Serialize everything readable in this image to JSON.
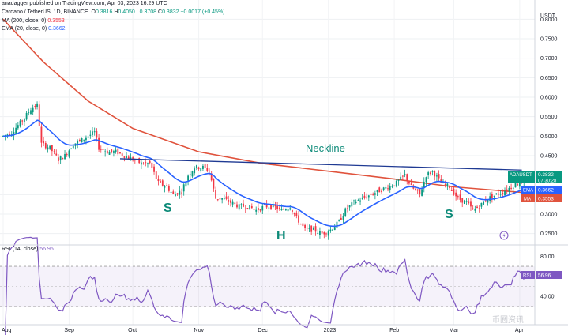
{
  "header": {
    "publisher_line": "anadagger published on TradingView.com, Apr 03, 2023 16:29 UTC",
    "symbol_line": "Cardano / TetherUS, 1D, BINANCE",
    "ohlc": {
      "o_label": "O",
      "o": "0.3816",
      "h_label": "H",
      "h": "0.4050",
      "l_label": "L",
      "l": "0.3708",
      "c_label": "C",
      "c": "0.3832",
      "change": "+0.0017 (+0.45%)"
    },
    "ma_label": "MA (200, close, 0)",
    "ma_value": "0.3553",
    "ema_label": "EMA (20, close, 0)",
    "ema_value": "0.3662",
    "rsi_label": "RSI (14, close)",
    "rsi_value": "56.96"
  },
  "annotations": {
    "neckline": "Neckline",
    "left_shoulder": "S",
    "head": "H",
    "right_shoulder": "S"
  },
  "price_tags": {
    "ticker": "ADAUSDT",
    "price": "0.3832",
    "countdown": "07:30:28",
    "ema_name": "EMA",
    "ema": "0.3662",
    "ma_name": "MA",
    "ma": "0.3553",
    "rsi_name": "RSI",
    "rsi": "56.96"
  },
  "watermark": "币圈资讯",
  "colors": {
    "up": "#089981",
    "down": "#f23645",
    "ma": "#e0533d",
    "ema": "#2962ff",
    "rsi": "#7e57c2",
    "neckline": "#1f3a93",
    "annotation": "#0c8a78"
  },
  "chart_data": [
    {
      "type": "candlestick",
      "title": "Cardano / TetherUS, 1D, BINANCE",
      "y_axis_title": "USDT",
      "ylim": [
        0.225,
        0.825
      ],
      "y_ticks": [
        0.25,
        0.3,
        0.35,
        0.4,
        0.45,
        0.5,
        0.55,
        0.6,
        0.65,
        0.7,
        0.75,
        0.8
      ],
      "y_tick_labels": [
        "0.2500",
        "0.3000",
        "0.3500",
        "0.4000",
        "0.4500",
        "0.5000",
        "0.5500",
        "0.6000",
        "0.6500",
        "0.7000",
        "0.7500",
        "0.8000"
      ],
      "x_ticks": [
        "Aug",
        "Sep",
        "Oct",
        "Nov",
        "Dec",
        "2023",
        "Feb",
        "Mar",
        "Apr"
      ],
      "close_series": [
        [
          "2022-08-01",
          0.5
        ],
        [
          "2022-08-05",
          0.51
        ],
        [
          "2022-08-10",
          0.54
        ],
        [
          "2022-08-14",
          0.57
        ],
        [
          "2022-08-17",
          0.58
        ],
        [
          "2022-08-19",
          0.48
        ],
        [
          "2022-08-23",
          0.47
        ],
        [
          "2022-08-27",
          0.44
        ],
        [
          "2022-08-30",
          0.45
        ],
        [
          "2022-09-03",
          0.48
        ],
        [
          "2022-09-07",
          0.49
        ],
        [
          "2022-09-10",
          0.5
        ],
        [
          "2022-09-13",
          0.51
        ],
        [
          "2022-09-15",
          0.47
        ],
        [
          "2022-09-19",
          0.46
        ],
        [
          "2022-09-23",
          0.46
        ],
        [
          "2022-09-27",
          0.45
        ],
        [
          "2022-10-01",
          0.44
        ],
        [
          "2022-10-05",
          0.43
        ],
        [
          "2022-10-09",
          0.43
        ],
        [
          "2022-10-13",
          0.38
        ],
        [
          "2022-10-17",
          0.37
        ],
        [
          "2022-10-20",
          0.35
        ],
        [
          "2022-10-24",
          0.36
        ],
        [
          "2022-10-27",
          0.4
        ],
        [
          "2022-10-30",
          0.42
        ],
        [
          "2022-11-03",
          0.42
        ],
        [
          "2022-11-06",
          0.41
        ],
        [
          "2022-11-09",
          0.34
        ],
        [
          "2022-11-12",
          0.34
        ],
        [
          "2022-11-16",
          0.33
        ],
        [
          "2022-11-20",
          0.32
        ],
        [
          "2022-11-24",
          0.32
        ],
        [
          "2022-11-28",
          0.31
        ],
        [
          "2022-12-02",
          0.32
        ],
        [
          "2022-12-06",
          0.32
        ],
        [
          "2022-12-10",
          0.31
        ],
        [
          "2022-12-14",
          0.32
        ],
        [
          "2022-12-17",
          0.29
        ],
        [
          "2022-12-21",
          0.26
        ],
        [
          "2022-12-25",
          0.26
        ],
        [
          "2022-12-29",
          0.25
        ],
        [
          "2023-01-02",
          0.26
        ],
        [
          "2023-01-06",
          0.28
        ],
        [
          "2023-01-09",
          0.31
        ],
        [
          "2023-01-13",
          0.33
        ],
        [
          "2023-01-17",
          0.34
        ],
        [
          "2023-01-21",
          0.35
        ],
        [
          "2023-01-25",
          0.36
        ],
        [
          "2023-01-29",
          0.37
        ],
        [
          "2023-02-02",
          0.38
        ],
        [
          "2023-02-06",
          0.4
        ],
        [
          "2023-02-09",
          0.37
        ],
        [
          "2023-02-13",
          0.35
        ],
        [
          "2023-02-16",
          0.4
        ],
        [
          "2023-02-19",
          0.41
        ],
        [
          "2023-02-23",
          0.38
        ],
        [
          "2023-02-27",
          0.37
        ],
        [
          "2023-03-03",
          0.34
        ],
        [
          "2023-03-07",
          0.33
        ],
        [
          "2023-03-10",
          0.31
        ],
        [
          "2023-03-13",
          0.32
        ],
        [
          "2023-03-17",
          0.34
        ],
        [
          "2023-03-21",
          0.35
        ],
        [
          "2023-03-25",
          0.36
        ],
        [
          "2023-03-28",
          0.37
        ],
        [
          "2023-03-31",
          0.38
        ],
        [
          "2023-04-03",
          0.3832
        ]
      ],
      "last_candle": {
        "open": 0.3816,
        "high": 0.405,
        "low": 0.3708,
        "close": 0.3832
      },
      "ma200": [
        [
          "2022-08-01",
          0.8
        ],
        [
          "2022-08-20",
          0.69
        ],
        [
          "2022-09-10",
          0.59
        ],
        [
          "2022-10-01",
          0.52
        ],
        [
          "2022-11-01",
          0.46
        ],
        [
          "2022-12-01",
          0.43
        ],
        [
          "2023-01-01",
          0.41
        ],
        [
          "2023-02-01",
          0.39
        ],
        [
          "2023-03-01",
          0.37
        ],
        [
          "2023-04-03",
          0.3553
        ]
      ],
      "ema20_last": 0.3662,
      "neckline": [
        [
          "2022-09-25",
          0.442
        ],
        [
          "2023-04-02",
          0.413
        ]
      ],
      "labels": {
        "neckline": "Neckline",
        "left_shoulder": "S",
        "head": "H",
        "right_shoulder": "S"
      }
    },
    {
      "type": "line",
      "title": "RSI (14, close)",
      "ylim": [
        15,
        85
      ],
      "y_ticks": [
        40,
        60,
        80
      ],
      "y_tick_labels": [
        "40.00",
        "60.00",
        "80.00"
      ],
      "band": [
        30,
        70
      ],
      "last_value": 56.96
    }
  ]
}
